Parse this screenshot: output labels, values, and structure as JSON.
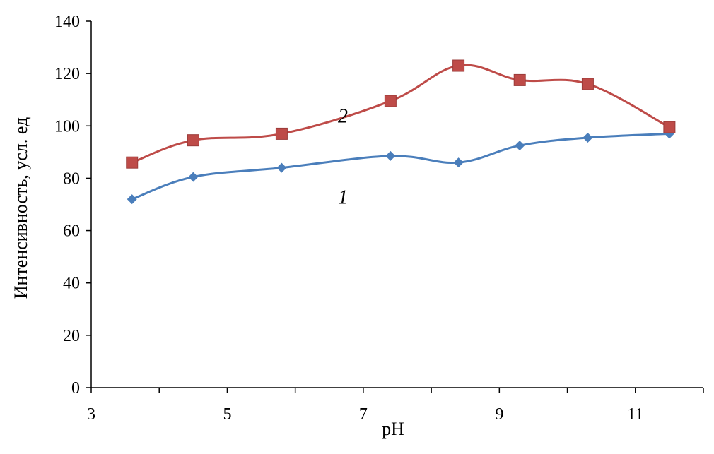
{
  "chart_data": {
    "type": "line",
    "xlabel": "pH",
    "ylabel": "Интенсивность, усл. ед",
    "xlim": [
      3,
      12
    ],
    "ylim": [
      0,
      140
    ],
    "x_ticks": [
      3,
      5,
      7,
      9,
      11
    ],
    "y_ticks": [
      0,
      20,
      40,
      60,
      80,
      100,
      120,
      140
    ],
    "x_tick_labels": [
      "3",
      "5",
      "7",
      "9",
      "11"
    ],
    "y_tick_labels": [
      "0",
      "20",
      "40",
      "60",
      "80",
      "100",
      "120",
      "140"
    ],
    "grid": false,
    "legend": "none",
    "series": [
      {
        "label": "1",
        "marker": "diamond",
        "color": "#4a7ebb",
        "x": [
          3.6,
          4.5,
          5.8,
          7.4,
          8.4,
          9.3,
          10.3,
          11.5
        ],
        "values": [
          72,
          80.5,
          84,
          88.5,
          86,
          92.5,
          95.5,
          97
        ],
        "label_position": [
          6.7,
          73
        ]
      },
      {
        "label": "2",
        "marker": "square",
        "color": "#be4b48",
        "x": [
          3.6,
          4.5,
          5.8,
          7.4,
          8.4,
          9.3,
          10.3,
          11.5
        ],
        "values": [
          86,
          94.5,
          97,
          109.5,
          123,
          117.5,
          116,
          99.5
        ],
        "label_position": [
          6.7,
          104
        ]
      }
    ]
  }
}
